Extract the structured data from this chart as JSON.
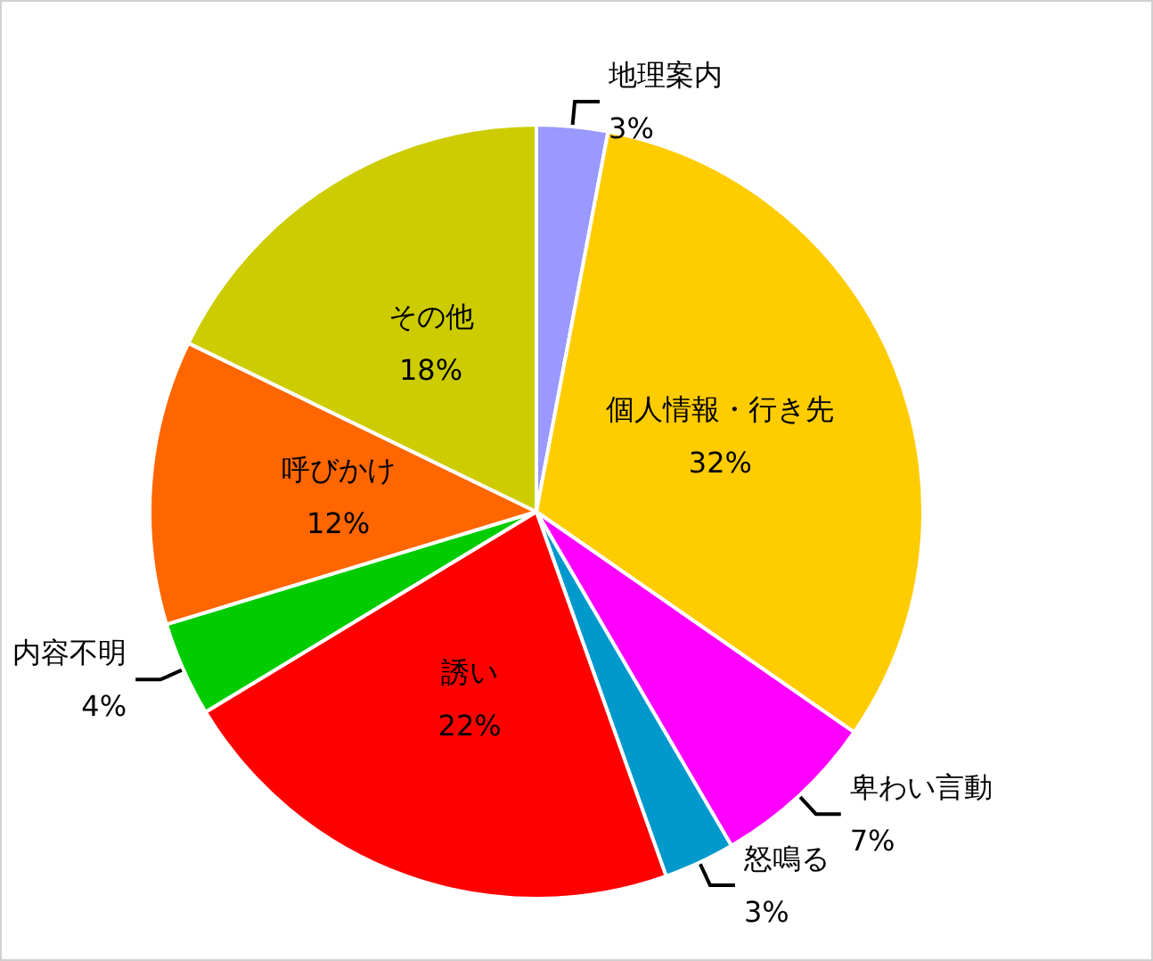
{
  "chart_data": {
    "type": "pie",
    "categories": [
      "地理案内",
      "個人情報・行き先",
      "卑わい言動",
      "怒鳴る",
      "誘い",
      "内容不明",
      "呼びかけ",
      "その他"
    ],
    "values": [
      3,
      32,
      7,
      3,
      22,
      4,
      12,
      18
    ],
    "colors": [
      "#9999ff",
      "#ffcc00",
      "#ff00ff",
      "#0099cc",
      "#ff0000",
      "#00cc00",
      "#ff6600",
      "#cccc00"
    ],
    "value_labels": [
      "3%",
      "32%",
      "7%",
      "3%",
      "22%",
      "4%",
      "12%",
      "18%"
    ],
    "legend": false
  }
}
